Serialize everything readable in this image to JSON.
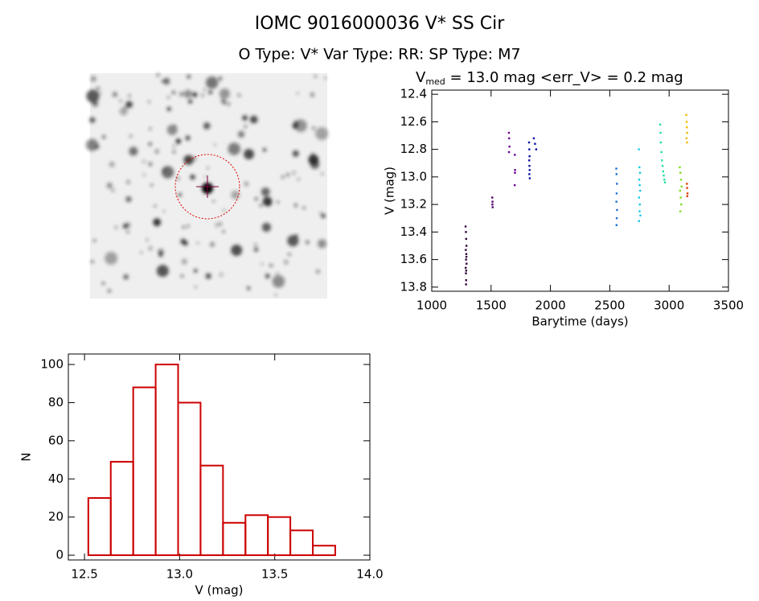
{
  "header": {
    "title": "IOMC 9016000036   V* SS Cir",
    "subtitle": "O Type: V*  Var Type: RR:  SP Type: M7"
  },
  "chart_data": [
    {
      "type": "scatter",
      "title": {
        "text": "V",
        "subscript": "med",
        "rest": " = 13.0 mag <err_V> = 0.2 mag"
      },
      "x_label": "Barytime (days)",
      "y_label": "V (mag)",
      "xlim": [
        1000,
        3500
      ],
      "xticks": [
        1000,
        1500,
        2000,
        2500,
        3000,
        3500
      ],
      "ylim": [
        12.37,
        13.83
      ],
      "y_inverted": true,
      "yticks": [
        12.4,
        12.6,
        12.8,
        {
          "value": 13.0,
          "label": "13.0"
        },
        13.2,
        13.4,
        13.6,
        13.8
      ],
      "series": [
        {
          "color": "#300038",
          "x": [
            1285,
            1288,
            1290,
            1292,
            1287,
            1291,
            1289,
            1293,
            1286,
            1290,
            1288,
            1292,
            1290,
            1289
          ],
          "y": [
            13.36,
            13.4,
            13.45,
            13.5,
            13.53,
            13.56,
            13.6,
            13.63,
            13.66,
            13.68,
            13.7,
            13.58,
            13.75,
            13.78
          ]
        },
        {
          "color": "#50006a",
          "x": [
            1510,
            1512,
            1511,
            1513
          ],
          "y": [
            13.15,
            13.18,
            13.2,
            13.22
          ]
        },
        {
          "color": "#6c0090",
          "x": [
            1650,
            1652,
            1655,
            1651,
            1700,
            1702,
            1701,
            1699
          ],
          "y": [
            12.68,
            12.72,
            12.78,
            12.82,
            12.84,
            12.95,
            12.97,
            13.06
          ]
        },
        {
          "color": "#0a10a8",
          "x": [
            1820,
            1822,
            1824,
            1821,
            1823,
            1825,
            1822,
            1826,
            1860,
            1870,
            1880
          ],
          "y": [
            12.75,
            12.8,
            12.85,
            12.88,
            12.92,
            12.95,
            12.98,
            13.01,
            12.72,
            12.76,
            12.8
          ]
        },
        {
          "color": "#1f6fd0",
          "x": [
            2555,
            2557,
            2560,
            2558,
            2556,
            2561,
            2559,
            2557
          ],
          "y": [
            12.94,
            12.98,
            13.05,
            13.12,
            13.18,
            13.24,
            13.3,
            13.35
          ]
        },
        {
          "color": "#18c8e8",
          "x": [
            2745,
            2750,
            2755,
            2748,
            2752,
            2756,
            2747,
            2753,
            2751,
            2758,
            2746
          ],
          "y": [
            12.8,
            12.93,
            12.97,
            13.02,
            13.06,
            13.1,
            13.15,
            13.2,
            13.25,
            13.28,
            13.32
          ]
        },
        {
          "color": "#20e0a0",
          "x": [
            2925,
            2928,
            2930,
            2935,
            2940,
            2945,
            2950,
            2955,
            2960,
            2965
          ],
          "y": [
            12.62,
            12.68,
            12.75,
            12.82,
            12.88,
            12.92,
            12.96,
            12.99,
            13.02,
            13.04
          ]
        },
        {
          "color": "#80e020",
          "x": [
            3090,
            3095,
            3100,
            3105,
            3092,
            3098,
            3102,
            3094
          ],
          "y": [
            12.93,
            12.97,
            13.02,
            13.07,
            13.1,
            13.15,
            13.2,
            13.25
          ]
        },
        {
          "color": "#f0b800",
          "x": [
            3145,
            3148,
            3150,
            3152,
            3147,
            3151
          ],
          "y": [
            12.55,
            12.6,
            12.64,
            12.68,
            12.72,
            12.75
          ]
        },
        {
          "color": "#e04000",
          "x": [
            3150,
            3152,
            3155,
            3153
          ],
          "y": [
            13.05,
            13.08,
            13.12,
            13.14
          ]
        }
      ]
    },
    {
      "type": "histogram",
      "x_label": "V (mag)",
      "y_label": "N",
      "color": "#cc0000",
      "bins": [
        12.52,
        12.638,
        12.756,
        12.874,
        12.992,
        13.11,
        13.228,
        13.346,
        13.464,
        13.582,
        13.7,
        13.818
      ],
      "values": [
        30,
        49,
        88,
        100,
        80,
        47,
        17,
        21,
        20,
        13,
        5
      ],
      "xlim": [
        12.415,
        14.0
      ],
      "xticks": [
        12.5,
        {
          "value": 13.0,
          "label": "13.0"
        },
        13.5,
        {
          "value": 14.0,
          "label": "14.0"
        }
      ],
      "ylim": [
        -2.5,
        105.5
      ],
      "yticks": [
        0,
        20,
        40,
        60,
        80,
        100
      ]
    }
  ]
}
